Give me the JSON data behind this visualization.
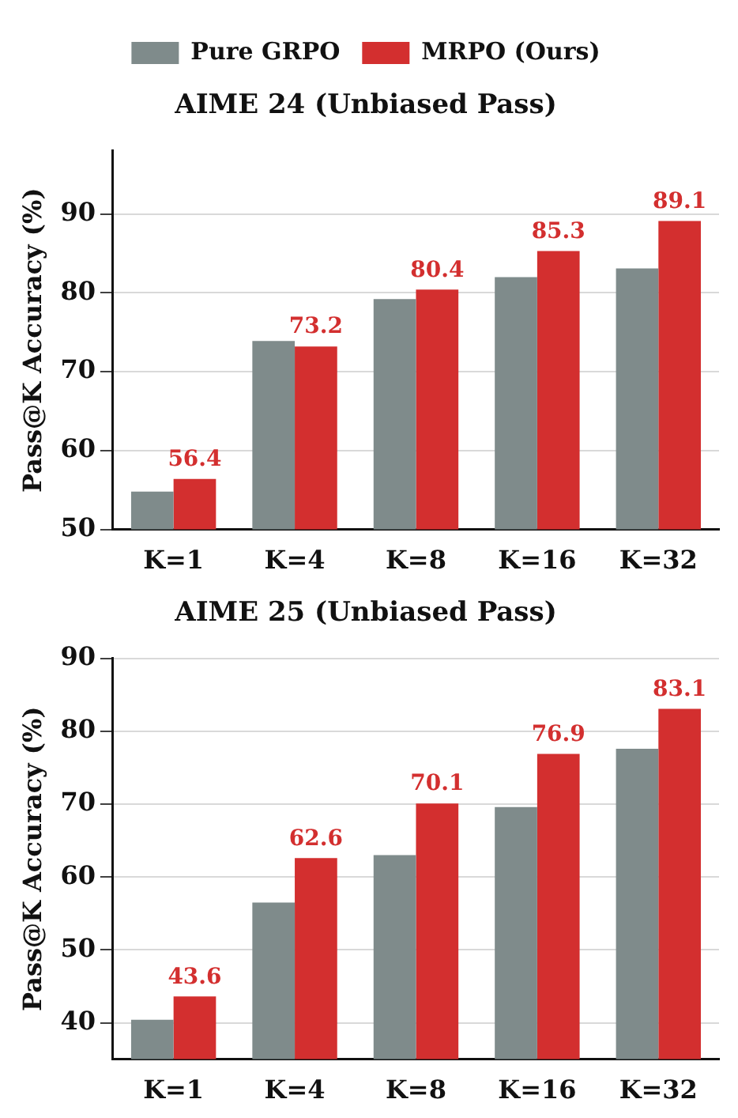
{
  "chart_data": [
    {
      "type": "bar",
      "title": "AIME 24 (Unbiased Pass)",
      "ylabel": "Pass@K Accuracy (%)",
      "categories": [
        "K=1",
        "K=4",
        "K=8",
        "K=16",
        "K=32"
      ],
      "series": [
        {
          "name": "Pure GRPO",
          "color": "#7f8b8b",
          "values": [
            54.8,
            73.9,
            79.2,
            82.0,
            83.1
          ]
        },
        {
          "name": "MRPO (Ours)",
          "color": "#d32f2f",
          "values": [
            56.4,
            73.2,
            80.4,
            85.3,
            89.1
          ],
          "value_labels": [
            "56.4",
            "73.2",
            "80.4",
            "85.3",
            "89.1"
          ]
        }
      ],
      "ylim": [
        50,
        98
      ],
      "yticks": [
        50,
        60,
        70,
        80,
        90
      ],
      "grid": "y",
      "legend": "top"
    },
    {
      "type": "bar",
      "title": "AIME 25 (Unbiased Pass)",
      "ylabel": "Pass@K Accuracy (%)",
      "categories": [
        "K=1",
        "K=4",
        "K=8",
        "K=16",
        "K=32"
      ],
      "series": [
        {
          "color": "#7f8b8b",
          "values": [
            40.4,
            56.5,
            63.0,
            69.6,
            77.6
          ]
        },
        {
          "color": "#d32f2f",
          "values": [
            43.6,
            62.6,
            70.1,
            76.9,
            83.1
          ],
          "value_labels": [
            "43.6",
            "62.6",
            "70.1",
            "76.9",
            "83.1"
          ]
        }
      ],
      "ylim": [
        35,
        90
      ],
      "yticks": [
        40,
        50,
        60,
        70,
        80,
        90
      ],
      "grid": "y"
    }
  ]
}
